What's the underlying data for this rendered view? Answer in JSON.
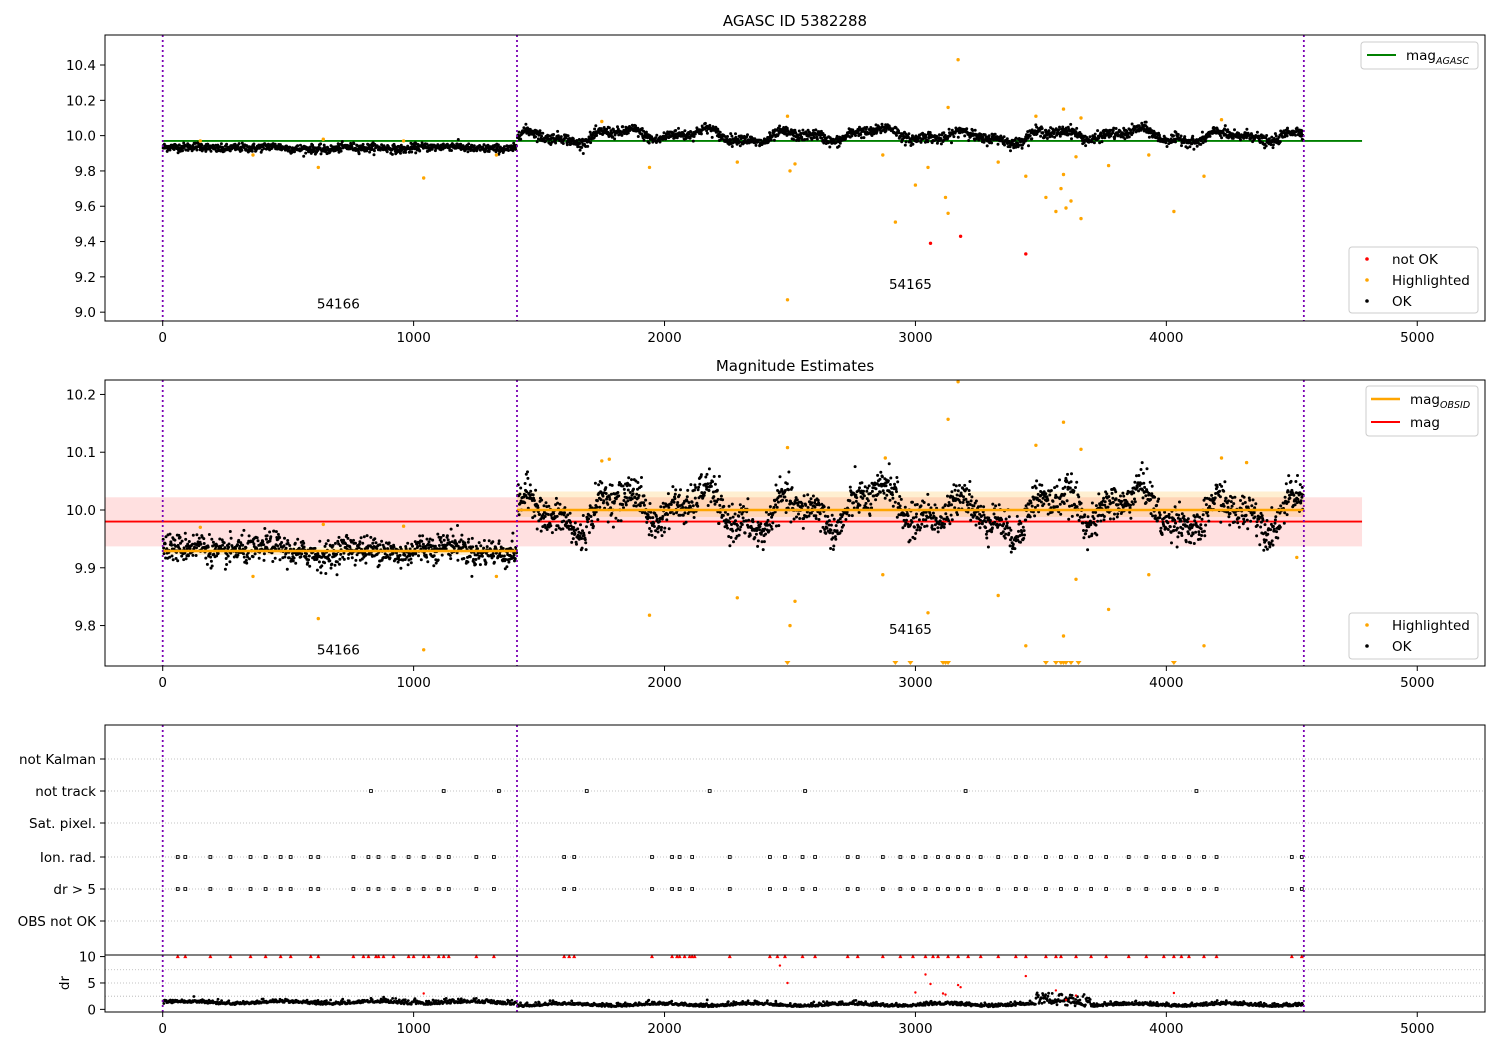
{
  "chart_data": [
    {
      "type": "scatter",
      "title": "AGASC ID 5382288",
      "xlim": [
        -230,
        5270
      ],
      "ylim": [
        8.95,
        10.57
      ],
      "x_ticks": [
        0,
        1000,
        2000,
        3000,
        4000,
        5000
      ],
      "y_ticks": [
        9.0,
        9.2,
        9.4,
        9.6,
        9.8,
        10.0,
        10.2,
        10.4
      ],
      "vlines": [
        0,
        1412,
        4548
      ],
      "obsid_labels": [
        {
          "text": "54166",
          "x": 700,
          "y": 9.02
        },
        {
          "text": "54165",
          "x": 2980,
          "y": 9.13
        }
      ],
      "mag_agasc": {
        "name": "mag_AGASC",
        "value": 9.97,
        "x_range": [
          0,
          4780
        ],
        "color": "#008000"
      },
      "segments": [
        {
          "x0": 0,
          "x1": 1412,
          "mean": 9.93,
          "wave_amp": 0.006,
          "noise": 0.012
        },
        {
          "x0": 1412,
          "x1": 4548,
          "mean": 10.0,
          "wave_amp": 0.025,
          "noise": 0.015
        }
      ],
      "highlighted": [
        [
          150,
          9.97
        ],
        [
          360,
          9.89
        ],
        [
          620,
          9.82
        ],
        [
          640,
          9.98
        ],
        [
          960,
          9.97
        ],
        [
          1040,
          9.76
        ],
        [
          1330,
          9.89
        ],
        [
          1750,
          10.08
        ],
        [
          1940,
          9.82
        ],
        [
          2290,
          9.85
        ],
        [
          2490,
          10.11
        ],
        [
          2490,
          9.07
        ],
        [
          2500,
          9.8
        ],
        [
          2520,
          9.84
        ],
        [
          2870,
          9.89
        ],
        [
          2920,
          9.51
        ],
        [
          3000,
          9.72
        ],
        [
          3050,
          9.82
        ],
        [
          3120,
          9.65
        ],
        [
          3130,
          10.16
        ],
        [
          3130,
          9.56
        ],
        [
          3170,
          10.43
        ],
        [
          3330,
          9.85
        ],
        [
          3440,
          9.77
        ],
        [
          3480,
          10.11
        ],
        [
          3520,
          9.65
        ],
        [
          3560,
          9.57
        ],
        [
          3580,
          9.7
        ],
        [
          3590,
          10.15
        ],
        [
          3590,
          9.78
        ],
        [
          3600,
          9.59
        ],
        [
          3620,
          9.63
        ],
        [
          3640,
          9.88
        ],
        [
          3660,
          10.1
        ],
        [
          3660,
          9.53
        ],
        [
          3770,
          9.83
        ],
        [
          3930,
          9.89
        ],
        [
          4030,
          9.57
        ],
        [
          4150,
          9.77
        ],
        [
          4220,
          10.09
        ]
      ],
      "not_ok": [
        [
          3060,
          9.39
        ],
        [
          3180,
          9.43
        ],
        [
          3440,
          9.33
        ]
      ],
      "legend_line": [
        {
          "label": "mag",
          "sub": "AGASC",
          "color": "#008000"
        }
      ],
      "legend_points": [
        {
          "label": "not OK",
          "color": "#ff0000"
        },
        {
          "label": "Highlighted",
          "color": "#ffa500"
        },
        {
          "label": "OK",
          "color": "#000000"
        }
      ]
    },
    {
      "type": "scatter",
      "title": "Magnitude Estimates",
      "xlim": [
        -230,
        5270
      ],
      "ylim": [
        9.73,
        10.225
      ],
      "x_ticks": [
        0,
        1000,
        2000,
        3000,
        4000,
        5000
      ],
      "y_ticks": [
        9.8,
        9.9,
        10.0,
        10.1,
        10.2
      ],
      "vlines": [
        0,
        1412,
        4548
      ],
      "obsid_labels": [
        {
          "text": "54166",
          "x": 700,
          "y": 9.75
        },
        {
          "text": "54165",
          "x": 2980,
          "y": 9.785
        }
      ],
      "mag": {
        "name": "mag",
        "value": 9.98,
        "band": [
          9.937,
          10.022
        ],
        "x_range": [
          -230,
          4780
        ],
        "color": "#ff0000"
      },
      "mag_obsid": [
        {
          "x0": 0,
          "x1": 1412,
          "value": 9.929,
          "band": [
            9.922,
            9.936
          ]
        },
        {
          "x0": 1412,
          "x1": 4548,
          "value": 10.0,
          "band": [
            9.988,
            10.032
          ]
        }
      ],
      "segments": [
        {
          "x0": 0,
          "x1": 1412,
          "mean": 9.93,
          "wave_amp": 0.006,
          "noise": 0.012
        },
        {
          "x0": 1412,
          "x1": 4548,
          "mean": 10.0,
          "wave_amp": 0.025,
          "noise": 0.015
        }
      ],
      "highlighted": [
        [
          150,
          9.97
        ],
        [
          360,
          9.885
        ],
        [
          620,
          9.812
        ],
        [
          640,
          9.975
        ],
        [
          960,
          9.972
        ],
        [
          1040,
          9.758
        ],
        [
          1330,
          9.885
        ],
        [
          1750,
          10.085
        ],
        [
          1780,
          10.088
        ],
        [
          1940,
          9.818
        ],
        [
          2290,
          9.848
        ],
        [
          2490,
          10.108
        ],
        [
          2500,
          9.8
        ],
        [
          2520,
          9.842
        ],
        [
          2870,
          9.888
        ],
        [
          2880,
          10.09
        ],
        [
          3050,
          9.822
        ],
        [
          3130,
          10.157
        ],
        [
          3170,
          10.222
        ],
        [
          3330,
          9.852
        ],
        [
          3440,
          9.765
        ],
        [
          3480,
          10.112
        ],
        [
          3590,
          10.152
        ],
        [
          3590,
          9.782
        ],
        [
          3640,
          9.88
        ],
        [
          3660,
          10.105
        ],
        [
          3770,
          9.828
        ],
        [
          3930,
          9.888
        ],
        [
          4150,
          9.765
        ],
        [
          4220,
          10.09
        ],
        [
          4320,
          10.082
        ],
        [
          4520,
          9.918
        ]
      ],
      "below_axis_markers": [
        2490,
        2920,
        2980,
        3110,
        3120,
        3130,
        3520,
        3560,
        3580,
        3590,
        3600,
        3620,
        3650,
        4030
      ],
      "legend_line": [
        {
          "label": "mag",
          "sub": "OBSID",
          "color": "#ffa500"
        },
        {
          "label": "mag",
          "sub": "",
          "color": "#ff0000"
        }
      ],
      "legend_points": [
        {
          "label": "Highlighted",
          "color": "#ffa500"
        },
        {
          "label": "OK",
          "color": "#000000"
        }
      ]
    },
    {
      "type": "scatter",
      "title": "",
      "xlim": [
        -230,
        5270
      ],
      "categories": [
        "not Kalman",
        "not track",
        "Sat. pixel.",
        "Ion. rad.",
        "dr > 5",
        "OBS not OK"
      ],
      "flags": {
        "not track": [
          830,
          1120,
          1340,
          1690,
          2180,
          2560,
          3200,
          4120
        ],
        "Ion. rad.": [
          60,
          90,
          190,
          270,
          350,
          410,
          470,
          510,
          590,
          620,
          760,
          820,
          860,
          920,
          980,
          1040,
          1100,
          1140,
          1250,
          1320,
          1600,
          1640,
          1950,
          2030,
          2060,
          2110,
          2260,
          2420,
          2480,
          2550,
          2600,
          2730,
          2770,
          2870,
          2940,
          2990,
          3040,
          3090,
          3130,
          3170,
          3210,
          3260,
          3330,
          3400,
          3440,
          3520,
          3580,
          3640,
          3700,
          3760,
          3850,
          3920,
          3990,
          4030,
          4090,
          4150,
          4200,
          4500,
          4540
        ],
        "dr > 5": [
          60,
          90,
          190,
          270,
          350,
          410,
          470,
          510,
          590,
          620,
          760,
          820,
          860,
          920,
          980,
          1040,
          1100,
          1140,
          1250,
          1320,
          1600,
          1640,
          1950,
          2030,
          2060,
          2110,
          2260,
          2420,
          2480,
          2550,
          2600,
          2730,
          2770,
          2870,
          2940,
          2990,
          3040,
          3090,
          3130,
          3170,
          3210,
          3260,
          3330,
          3400,
          3440,
          3520,
          3580,
          3640,
          3700,
          3760,
          3850,
          3920,
          3990,
          4030,
          4090,
          4150,
          4200,
          4500,
          4540
        ]
      },
      "vlines": [
        0,
        1412,
        4548
      ]
    },
    {
      "type": "scatter",
      "title": "",
      "xlim": [
        -230,
        5270
      ],
      "ylim": [
        -0.5,
        10.3
      ],
      "y_ticks": [
        0,
        5,
        10
      ],
      "x_ticks": [
        0,
        1000,
        2000,
        3000,
        4000,
        5000
      ],
      "ylabel": "dr",
      "vlines": [
        0,
        1412,
        4548
      ],
      "clipped_markers_x": [
        60,
        90,
        190,
        270,
        350,
        410,
        470,
        510,
        590,
        620,
        760,
        800,
        820,
        850,
        860,
        880,
        920,
        980,
        1000,
        1040,
        1060,
        1100,
        1120,
        1140,
        1250,
        1320,
        1600,
        1620,
        1640,
        1950,
        2030,
        2050,
        2060,
        2080,
        2100,
        2110,
        2120,
        2260,
        2420,
        2450,
        2480,
        2550,
        2600,
        2730,
        2770,
        2870,
        2940,
        2990,
        3040,
        3070,
        3090,
        3130,
        3170,
        3210,
        3260,
        3330,
        3400,
        3440,
        3520,
        3560,
        3580,
        3640,
        3700,
        3760,
        3850,
        3920,
        3990,
        4030,
        4060,
        4090,
        4150,
        4200,
        4500,
        4540
      ],
      "outliers": [
        [
          1040,
          3.0
        ],
        [
          2460,
          8.3
        ],
        [
          2490,
          5.0
        ],
        [
          3000,
          3.2
        ],
        [
          3040,
          6.6
        ],
        [
          3060,
          4.8
        ],
        [
          3110,
          3.0
        ],
        [
          3120,
          2.8
        ],
        [
          3170,
          4.6
        ],
        [
          3180,
          4.2
        ],
        [
          3440,
          6.3
        ],
        [
          3560,
          3.6
        ],
        [
          3600,
          1.8
        ],
        [
          3640,
          2.6
        ],
        [
          4030,
          3.1
        ]
      ]
    }
  ]
}
